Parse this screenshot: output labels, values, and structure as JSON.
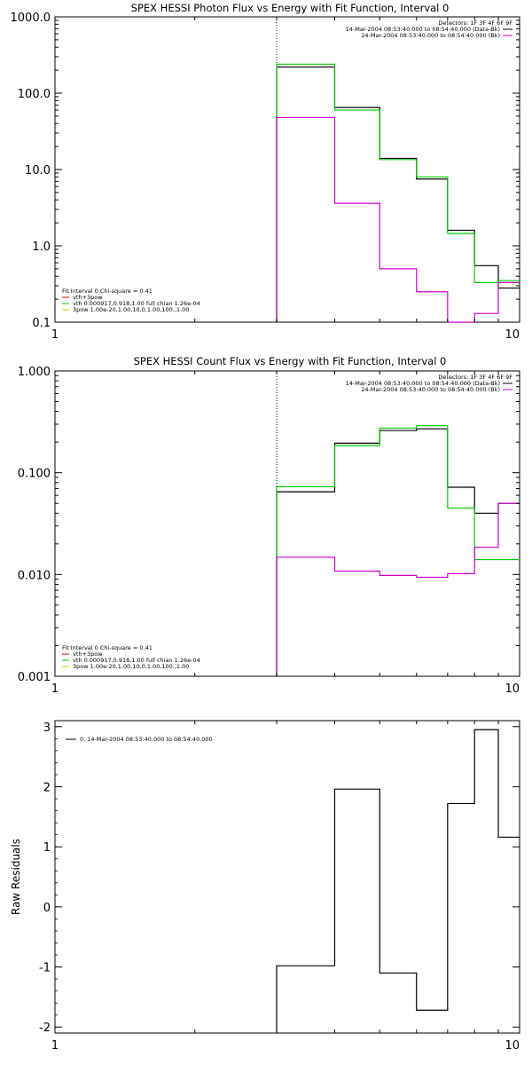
{
  "chart_data": [
    {
      "type": "step",
      "title": "SPEX HESSI Photon Flux vs Energy with Fit Function, Interval 0",
      "xlabel": "",
      "ylabel": "",
      "xscale": "log",
      "yscale": "log",
      "xlim": [
        1,
        10
      ],
      "ylim": [
        0.1,
        1000
      ],
      "xticks": [
        1,
        10
      ],
      "xtick_labels": [
        "1",
        "10"
      ],
      "yticks": [
        0.1,
        1,
        10,
        100,
        1000
      ],
      "ytick_labels": [
        "0.1",
        "1.0",
        "10.0",
        "100.0",
        "1000.0"
      ],
      "grid": false,
      "vline": 3,
      "edges": [
        3,
        4,
        5,
        6,
        7,
        8,
        9,
        10
      ],
      "legend_top": {
        "placement": "top-right",
        "lines": [
          {
            "text": "Detectors: 1F 3F 4F 6F 9F",
            "color": null
          },
          {
            "text": "14-Mar-2004 08:53:40.000 to 08:54:40.000 (Data-Bk)",
            "color": "#000000"
          },
          {
            "text": "24-Mar-2004 08:53:40.000 to 08:54:40.000 (Bk)",
            "color": "#cc00cc"
          }
        ]
      },
      "legend_bottom": {
        "placement": "bottom-left",
        "lines": [
          {
            "text": "Fit Interval 0   Chi-square = 0.41",
            "color": null
          },
          {
            "text": "vth+3pow",
            "color": "#cc0000"
          },
          {
            "text": "vth 0.000917,0.918,1.00  full chian 1.26e-04",
            "color": "#00cc00"
          },
          {
            "text": "3pow 1.00e-20,1.00,10.0,1.00,100.,1.00",
            "color": "#cccc00"
          }
        ]
      },
      "series": [
        {
          "color": "#000000",
          "values": [
            220,
            65,
            14,
            7.5,
            1.6,
            0.55,
            0.28
          ]
        },
        {
          "color": "#00cc00",
          "values": [
            240,
            60,
            13.5,
            8,
            1.45,
            0.33,
            0.35
          ]
        },
        {
          "color": "#cc00cc",
          "values": [
            48,
            3.6,
            0.5,
            0.25,
            0.1,
            0.13,
            0.33
          ]
        }
      ]
    },
    {
      "type": "step",
      "title": "SPEX HESSI Count Flux vs Energy with Fit Function, Interval 0",
      "xlabel": "",
      "ylabel": "",
      "xscale": "log",
      "yscale": "log",
      "xlim": [
        1,
        10
      ],
      "ylim": [
        0.001,
        1
      ],
      "xticks": [
        1,
        10
      ],
      "xtick_labels": [
        "1",
        "10"
      ],
      "yticks": [
        0.001,
        0.01,
        0.1,
        1
      ],
      "ytick_labels": [
        "0.001",
        "0.010",
        "0.100",
        "1.000"
      ],
      "grid": false,
      "vline": 3,
      "edges": [
        3,
        4,
        5,
        6,
        7,
        8,
        9,
        10
      ],
      "legend_top": {
        "placement": "top-right",
        "lines": [
          {
            "text": "Detectors: 1F 3F 4F 6F 9F",
            "color": null
          },
          {
            "text": "14-Mar-2004 08:53:40.000 to 08:54:40.000 (Data-Bk)",
            "color": "#000000"
          },
          {
            "text": "24-Mar-2004 08:53:40.000 to 08:54:40.000 (Bk)",
            "color": "#cc00cc"
          }
        ]
      },
      "legend_bottom": {
        "placement": "bottom-left",
        "lines": [
          {
            "text": "Fit Interval 0   Chi-square = 0.41",
            "color": null
          },
          {
            "text": "vth+3pow",
            "color": "#cc0000"
          },
          {
            "text": "vth 0.000917,0.918,1.00  full chian 1.26e-04",
            "color": "#00cc00"
          },
          {
            "text": "3pow 1.00e-20,1.00,10.0,1.00,100.,1.00",
            "color": "#cccc00"
          }
        ]
      },
      "series": [
        {
          "color": "#000000",
          "values": [
            0.065,
            0.195,
            0.26,
            0.27,
            0.072,
            0.04,
            0.05
          ]
        },
        {
          "color": "#00cc00",
          "values": [
            0.073,
            0.185,
            0.275,
            0.29,
            0.045,
            0.014,
            0.014
          ]
        },
        {
          "color": "#cc00cc",
          "values": [
            0.0148,
            0.0108,
            0.0098,
            0.0094,
            0.0102,
            0.0185,
            0.05
          ]
        }
      ]
    },
    {
      "type": "step",
      "title": "",
      "xlabel": "",
      "ylabel": "Raw Residuals",
      "xscale": "log",
      "yscale": "linear",
      "xlim": [
        1,
        10
      ],
      "ylim": [
        -2.1,
        3.1
      ],
      "xticks": [
        1,
        10
      ],
      "xtick_labels": [
        "1",
        "10"
      ],
      "yticks": [
        -2,
        -1,
        0,
        1,
        2,
        3
      ],
      "ytick_labels": [
        "-2",
        "-1",
        "0",
        "1",
        "2",
        "3"
      ],
      "grid": false,
      "edges": [
        3,
        4,
        5,
        6,
        7,
        8,
        9,
        10
      ],
      "legend_top": {
        "placement": "top-left",
        "lines": [
          {
            "text": "0. 14-Mar-2004 08:53:40.000 to 08:54:40.000",
            "color": "#000000"
          }
        ]
      },
      "series": [
        {
          "color": "#000000",
          "values": [
            -0.98,
            1.96,
            -1.1,
            -1.72,
            1.72,
            2.95,
            1.16
          ]
        }
      ]
    }
  ]
}
